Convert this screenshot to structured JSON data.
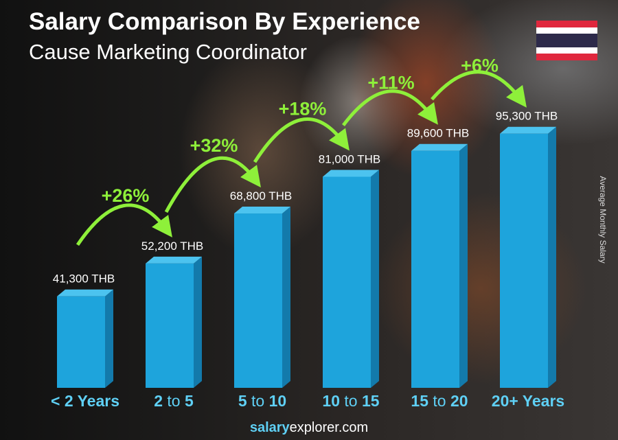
{
  "chart_data": {
    "type": "bar",
    "title": "Salary Comparison By Experience",
    "subtitle": "Cause Marketing Coordinator",
    "ylabel": "Average Monthly Salary",
    "categories": [
      {
        "pre": "< 2 Years",
        "mid": "",
        "post": ""
      },
      {
        "pre": "2",
        "mid": " to ",
        "post": "5"
      },
      {
        "pre": "5",
        "mid": " to ",
        "post": "10"
      },
      {
        "pre": "10",
        "mid": " to ",
        "post": "15"
      },
      {
        "pre": "15",
        "mid": " to ",
        "post": "20"
      },
      {
        "pre": "20+ Years",
        "mid": "",
        "post": ""
      }
    ],
    "values": [
      41300,
      52200,
      68800,
      81000,
      89600,
      95300
    ],
    "value_labels": [
      "41,300 THB",
      "52,200 THB",
      "68,800 THB",
      "81,000 THB",
      "89,600 THB",
      "95,300 THB"
    ],
    "changes": [
      "+26%",
      "+32%",
      "+18%",
      "+11%",
      "+6%"
    ],
    "colors": {
      "bar": "#1ea4dc",
      "bar_side": "#137aab",
      "bar_top": "#4cc3ef",
      "category": "#5fd0f5",
      "change": "#8ef03a"
    }
  },
  "flag": {
    "country": "Thailand",
    "colors": [
      "#e0273d",
      "#ffffff",
      "#2d2a4a",
      "#ffffff",
      "#e0273d"
    ]
  },
  "footer": {
    "bold": "salary",
    "rest": "explorer.com"
  }
}
